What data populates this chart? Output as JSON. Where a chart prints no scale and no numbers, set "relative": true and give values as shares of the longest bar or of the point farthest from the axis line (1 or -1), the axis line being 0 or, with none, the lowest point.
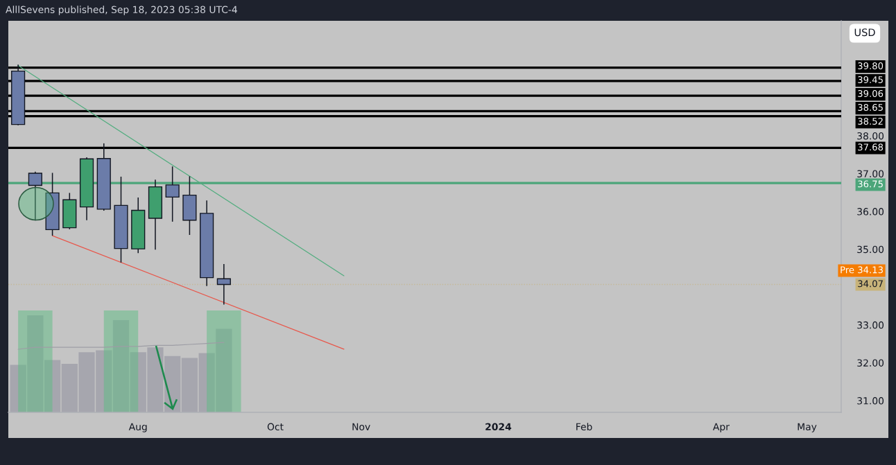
{
  "chart_data": [
    {
      "type": "candlestick",
      "title": "AlllSevens published, Sep 18, 2023 05:38 UTC-4",
      "x": [
        "2023-06-19",
        "2023-06-26",
        "2023-07-03",
        "2023-07-10",
        "2023-07-17",
        "2023-07-24",
        "2023-07-31",
        "2023-08-07",
        "2023-08-14",
        "2023-08-21",
        "2023-08-28",
        "2023-09-04",
        "2023-09-11"
      ],
      "ohlc": [
        [
          39.71,
          39.88,
          38.28,
          38.3
        ],
        [
          37.01,
          37.05,
          35.76,
          36.69
        ],
        [
          36.49,
          37.02,
          35.36,
          35.52
        ],
        [
          35.57,
          36.49,
          35.53,
          36.31
        ],
        [
          36.12,
          37.43,
          35.77,
          37.39
        ],
        [
          37.4,
          37.8,
          36.02,
          36.06
        ],
        [
          36.16,
          36.92,
          34.65,
          35.02
        ],
        [
          35.01,
          36.37,
          34.9,
          36.03
        ],
        [
          35.82,
          36.84,
          34.99,
          36.65
        ],
        [
          36.7,
          37.19,
          35.73,
          36.38
        ],
        [
          36.43,
          36.93,
          35.38,
          35.77
        ],
        [
          35.95,
          36.29,
          34.03,
          34.25
        ],
        [
          34.22,
          34.61,
          33.54,
          34.07
        ]
      ],
      "colors": [
        "#6b7ca9",
        "#6b7ca9",
        "#6b7ca9",
        "#3f9f6e",
        "#3f9f6e",
        "#6b7ca9",
        "#6b7ca9",
        "#3f9f6e",
        "#3f9f6e",
        "#6b7ca9",
        "#6b7ca9",
        "#6b7ca9",
        "#6b7ca9"
      ],
      "series": [
        {
          "type": "line",
          "color": "#52ad7f",
          "x": [
            "2023-06-19",
            "2023-10-30"
          ],
          "values": [
            39.86,
            34.3
          ]
        },
        {
          "type": "line",
          "color": "#e8574b",
          "x": [
            "2023-07-03",
            "2023-10-30"
          ],
          "values": [
            35.36,
            32.36
          ]
        }
      ],
      "xlim": [
        "2023-06-15",
        "2024-05-20"
      ],
      "ylim": [
        30.69,
        41.04
      ],
      "xticks": [
        {
          "value": "2023-08-07",
          "label": "Aug"
        },
        {
          "value": "2023-10-02",
          "label": "Oct"
        },
        {
          "value": "2023-11-06",
          "label": "Nov"
        },
        {
          "value": "2024-01-01",
          "label": "2024"
        },
        {
          "value": "2024-02-05",
          "label": "Feb"
        },
        {
          "value": "2024-04-01",
          "label": "Apr"
        },
        {
          "value": "2024-05-06",
          "label": "May"
        }
      ],
      "yticks": [
        {
          "value": 31,
          "label": "31.00"
        },
        {
          "value": 32,
          "label": "32.00"
        },
        {
          "value": 33,
          "label": "33.00"
        },
        {
          "value": 35,
          "label": "35.00"
        },
        {
          "value": 36,
          "label": "36.00"
        },
        {
          "value": 37,
          "label": "37.00"
        },
        {
          "value": 38,
          "label": "38.00"
        }
      ],
      "ref_lines": [
        {
          "axis": "y",
          "value": 39.8,
          "label": "39.80",
          "color": "#000000"
        },
        {
          "axis": "y",
          "value": 39.45,
          "label": "39.45",
          "color": "#000000"
        },
        {
          "axis": "y",
          "value": 39.06,
          "label": "39.06",
          "color": "#000000"
        },
        {
          "axis": "y",
          "value": 38.65,
          "label": "38.65",
          "color": "#000000"
        },
        {
          "axis": "y",
          "value": 38.52,
          "label": "38.52",
          "color": "#000000"
        },
        {
          "axis": "y",
          "value": 37.68,
          "label": "37.68",
          "color": "#000000"
        },
        {
          "axis": "y",
          "value": 36.75,
          "label": "36.75",
          "color": "#4ca57a"
        },
        {
          "axis": "y",
          "value": 34.07,
          "label": "34.07",
          "color": "#c8b37a",
          "line_style": "dotted"
        }
      ],
      "annotations": [
        "USD",
        "Pre 34.13"
      ]
    },
    {
      "type": "bar",
      "relative": true,
      "tick_labels": false,
      "x": [
        "2023-06-19",
        "2023-06-26",
        "2023-07-03",
        "2023-07-10",
        "2023-07-17",
        "2023-07-24",
        "2023-07-31",
        "2023-08-07",
        "2023-08-14",
        "2023-08-21",
        "2023-08-28",
        "2023-09-04",
        "2023-09-11"
      ],
      "xlim": [
        "2023-06-15",
        "2024-05-20"
      ],
      "series": [
        {
          "type": "bar",
          "color": "#a6a6ae",
          "values": [
            0.49,
            1,
            0.54,
            0.5,
            0.62,
            0.64,
            0.95,
            0.62,
            0.67,
            0.58,
            0.56,
            0.61,
            0.86
          ]
        },
        {
          "type": "line",
          "color": "#9d9da5",
          "values": [
            0.65,
            0.67,
            0.67,
            0.67,
            0.67,
            0.67,
            0.68,
            0.68,
            0.69,
            0.69,
            0.7,
            0.71,
            0.72
          ]
        }
      ],
      "bands": [
        {
          "axis": "x",
          "from": "2023-06-19",
          "to": "2023-07-03",
          "color": "#5cbc82"
        },
        {
          "axis": "x",
          "from": "2023-07-24",
          "to": "2023-08-07",
          "color": "#5cbc82"
        },
        {
          "axis": "x",
          "from": "2023-09-04",
          "to": "2023-09-18",
          "color": "#5cbc82"
        }
      ]
    }
  ]
}
